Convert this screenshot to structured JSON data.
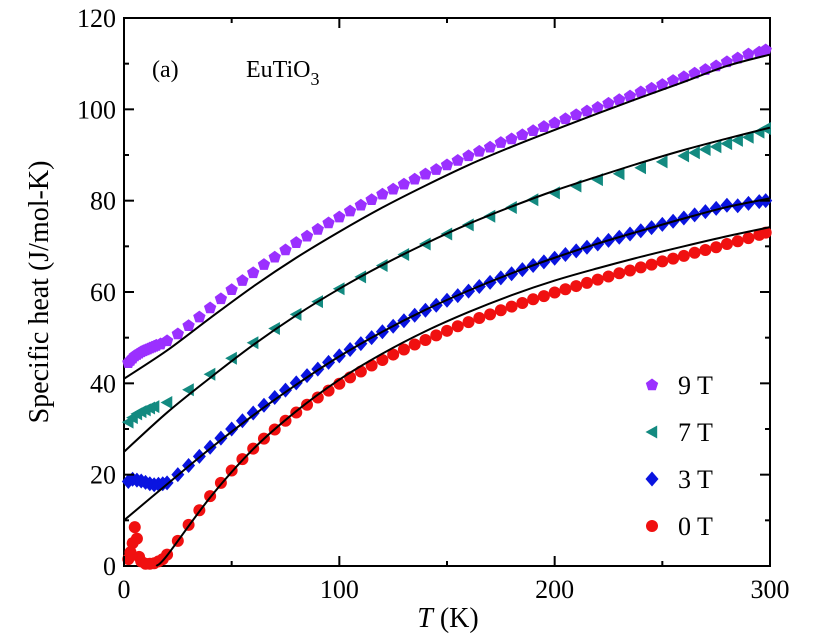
{
  "chart_data": {
    "type": "scatter",
    "panel_label": "(a)",
    "compound": "EuTiO",
    "compound_subscript": "3",
    "xlabel_var": "T",
    "xlabel_unit": " (K)",
    "ylabel": "Specific heat (J/mol-K)",
    "xlim": [
      0,
      300
    ],
    "ylim": [
      0,
      120
    ],
    "xticks": [
      0,
      100,
      200,
      300
    ],
    "yticks": [
      0,
      20,
      40,
      60,
      80,
      100,
      120
    ],
    "grid": false,
    "legend_position": "bottom-right",
    "series": [
      {
        "name": "9 T",
        "marker": "pentagon",
        "color": "#9B30FF",
        "x": [
          2,
          3,
          4,
          5,
          6,
          7,
          8,
          9,
          10,
          11,
          12,
          13,
          14,
          15,
          17,
          20,
          25,
          30,
          35,
          40,
          45,
          50,
          55,
          60,
          65,
          70,
          75,
          80,
          85,
          90,
          95,
          100,
          105,
          110,
          115,
          120,
          125,
          130,
          135,
          140,
          145,
          150,
          155,
          160,
          165,
          170,
          175,
          180,
          185,
          190,
          195,
          200,
          205,
          210,
          215,
          220,
          225,
          230,
          235,
          240,
          245,
          250,
          255,
          260,
          265,
          270,
          275,
          280,
          285,
          290,
          295,
          298
        ],
        "y": [
          44.5,
          45,
          45.5,
          46,
          46.3,
          46.6,
          46.9,
          47.1,
          47.3,
          47.5,
          47.7,
          47.9,
          48.1,
          48.3,
          48.6,
          49.3,
          50.8,
          52.6,
          54.5,
          56.5,
          58.5,
          60.5,
          62.5,
          64.2,
          66,
          67.6,
          69.2,
          70.8,
          72.2,
          73.7,
          75.1,
          76.4,
          77.7,
          79,
          80.2,
          81.4,
          82.5,
          83.6,
          84.7,
          85.8,
          86.8,
          87.8,
          88.8,
          89.8,
          90.8,
          91.7,
          92.7,
          93.5,
          94.4,
          95.3,
          96.2,
          97,
          97.9,
          98.8,
          99.6,
          100.4,
          101.3,
          102.1,
          102.9,
          103.8,
          104.6,
          105.4,
          106.3,
          107.1,
          107.9,
          108.7,
          109.5,
          110.4,
          111.2,
          112.1,
          112.5,
          113
        ]
      },
      {
        "name": "7 T",
        "marker": "triangle-left",
        "color": "#138A80",
        "x": [
          2,
          4,
          6,
          8,
          10,
          12,
          14,
          20,
          30,
          40,
          50,
          60,
          70,
          80,
          90,
          100,
          110,
          120,
          130,
          140,
          150,
          160,
          170,
          180,
          190,
          200,
          210,
          220,
          230,
          240,
          250,
          260,
          265,
          270,
          275,
          280,
          285,
          290,
          295,
          298
        ],
        "y": [
          31.5,
          32.5,
          33.3,
          33.8,
          34.2,
          34.6,
          34.9,
          35.8,
          38.6,
          42,
          45.5,
          48.9,
          52,
          55.1,
          57.9,
          60.7,
          63.3,
          65.8,
          68.2,
          70.5,
          72.7,
          74.7,
          76.6,
          78.5,
          80.2,
          81.7,
          83.2,
          84.6,
          85.9,
          87.2,
          88.5,
          89.8,
          90.5,
          91.2,
          91.8,
          92.5,
          93.2,
          93.9,
          95,
          95.8
        ]
      },
      {
        "name": "3 T",
        "marker": "diamond",
        "color": "#0A14E0",
        "x": [
          2,
          4,
          6,
          8,
          10,
          12,
          14,
          16,
          18,
          20,
          25,
          30,
          35,
          40,
          45,
          50,
          55,
          60,
          65,
          70,
          75,
          80,
          85,
          90,
          95,
          100,
          105,
          110,
          115,
          120,
          125,
          130,
          135,
          140,
          145,
          150,
          155,
          160,
          165,
          170,
          175,
          180,
          185,
          190,
          195,
          200,
          205,
          210,
          215,
          220,
          225,
          230,
          235,
          240,
          245,
          250,
          255,
          260,
          265,
          270,
          275,
          280,
          285,
          290,
          295,
          298
        ],
        "y": [
          18.5,
          19,
          18.8,
          18.6,
          18.3,
          18,
          17.8,
          17.9,
          18,
          18.2,
          20,
          22,
          24,
          26,
          28,
          30,
          31.8,
          33.5,
          35.2,
          36.9,
          38.5,
          40.1,
          41.7,
          43.1,
          44.6,
          46,
          47.4,
          48.7,
          50,
          51.3,
          52.5,
          53.7,
          54.9,
          56,
          57.1,
          58.2,
          59.2,
          60.2,
          61.2,
          62.1,
          63.1,
          64,
          64.9,
          65.8,
          66.6,
          67.4,
          68.2,
          69,
          69.8,
          70.5,
          71.3,
          72,
          72.7,
          73.4,
          74.1,
          74.8,
          75.5,
          76.2,
          76.9,
          77.6,
          78.3,
          79,
          78.9,
          79.4,
          79.8,
          80
        ]
      },
      {
        "name": "0 T",
        "marker": "circle",
        "color": "#F01010",
        "x": [
          2,
          3,
          4,
          5,
          6,
          7,
          8,
          10,
          12,
          14,
          16,
          18,
          20,
          25,
          30,
          35,
          40,
          45,
          50,
          55,
          60,
          65,
          70,
          75,
          80,
          85,
          90,
          95,
          100,
          105,
          110,
          115,
          120,
          125,
          130,
          135,
          140,
          145,
          150,
          155,
          160,
          165,
          170,
          175,
          180,
          185,
          190,
          195,
          200,
          205,
          210,
          215,
          220,
          225,
          230,
          235,
          240,
          245,
          250,
          255,
          260,
          265,
          270,
          275,
          280,
          285,
          290,
          295,
          298
        ],
        "y": [
          1.5,
          3,
          5,
          8.5,
          6,
          2,
          1,
          0.5,
          0.5,
          0.6,
          1,
          1.5,
          2.5,
          5.5,
          9,
          12.2,
          15.3,
          18.2,
          20.9,
          23.4,
          25.7,
          27.9,
          29.9,
          31.8,
          33.6,
          35.3,
          36.9,
          38.4,
          39.9,
          41.3,
          42.6,
          43.9,
          45.1,
          46.3,
          47.4,
          48.5,
          49.5,
          50.5,
          51.5,
          52.5,
          53.4,
          54.3,
          55.1,
          56,
          56.8,
          57.6,
          58.4,
          59.1,
          59.9,
          60.6,
          61.3,
          62,
          62.7,
          63.4,
          64.1,
          64.7,
          65.4,
          66,
          66.7,
          67.3,
          67.9,
          68.6,
          69.2,
          69.8,
          70.5,
          71.1,
          71.8,
          72.5,
          73
        ],
        "comment_only_for_display": ""
      }
    ],
    "fits": [
      {
        "x": [
          0,
          20,
          40,
          60,
          80,
          100,
          120,
          140,
          160,
          180,
          200,
          220,
          240,
          260,
          280,
          300
        ],
        "y": [
          41,
          47.2,
          54.3,
          61.2,
          67.5,
          73.2,
          78.5,
          83.3,
          87.8,
          91.8,
          95.5,
          99.1,
          102.6,
          106,
          109.5,
          112
        ]
      },
      {
        "x": [
          0,
          20,
          40,
          60,
          80,
          100,
          120,
          140,
          160,
          180,
          200,
          220,
          240,
          260,
          280,
          300
        ],
        "y": [
          25,
          33.6,
          41.2,
          48.4,
          54.9,
          60.7,
          65.9,
          70.6,
          74.9,
          78.7,
          82.2,
          85.3,
          88.3,
          91.1,
          93.6,
          96
        ]
      },
      {
        "x": [
          0,
          20,
          40,
          60,
          80,
          100,
          120,
          140,
          160,
          180,
          200,
          220,
          240,
          260,
          280,
          300
        ],
        "y": [
          10,
          17.9,
          25.7,
          33,
          39.7,
          45.9,
          51.3,
          56.1,
          60.3,
          64.1,
          67.5,
          70.6,
          73.4,
          76.1,
          78.6,
          80.5
        ]
      },
      {
        "x": [
          15,
          20,
          40,
          60,
          80,
          100,
          120,
          140,
          160,
          180,
          200,
          220,
          240,
          260,
          280,
          300
        ],
        "y": [
          0,
          2.3,
          15,
          25.6,
          33.9,
          40.8,
          46.5,
          51.4,
          55.6,
          59.3,
          62.5,
          65.2,
          67.7,
          70,
          72.2,
          74.2
        ]
      }
    ]
  }
}
